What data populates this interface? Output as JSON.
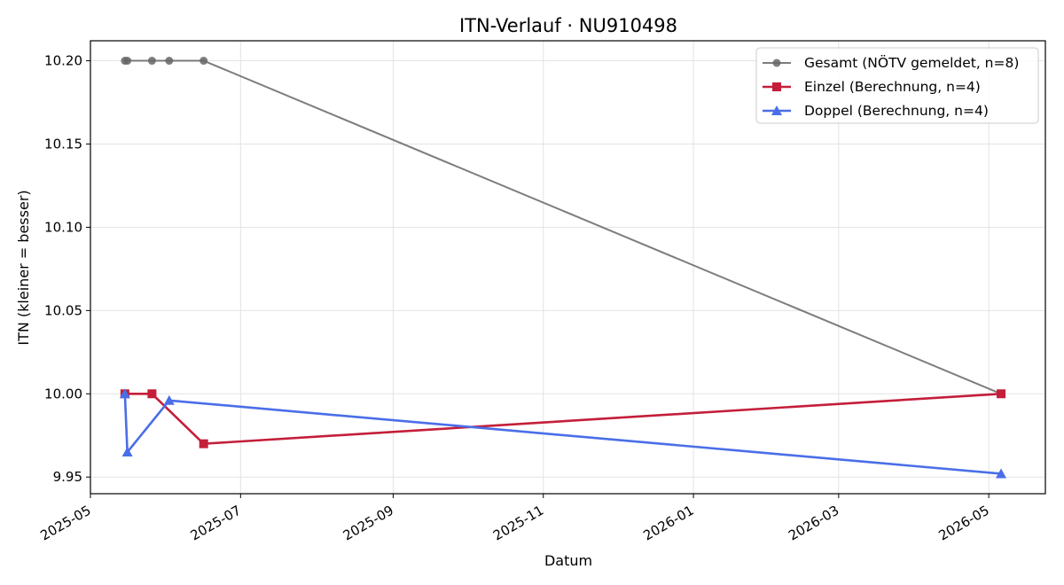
{
  "chart_data": {
    "type": "line",
    "title": "ITN-Verlauf · NU910498",
    "xlabel": "Datum",
    "ylabel": "ITN  (kleiner = besser)",
    "x_axis_type": "date",
    "xlim": [
      "2025-05-01",
      "2026-05-24"
    ],
    "ylim": [
      9.94,
      10.212
    ],
    "x_ticks": [
      "2025-05-01",
      "2025-07-01",
      "2025-09-01",
      "2025-11-01",
      "2026-01-01",
      "2026-03-01",
      "2026-05-01"
    ],
    "x_tick_labels": [
      "2025-05",
      "2025-07",
      "2025-09",
      "2025-11",
      "2026-01",
      "2026-03",
      "2026-05"
    ],
    "y_ticks": [
      9.95,
      10.0,
      10.05,
      10.1,
      10.15,
      10.2
    ],
    "y_tick_labels": [
      "9.95",
      "10.00",
      "10.05",
      "10.10",
      "10.15",
      "10.20"
    ],
    "grid": true,
    "legend_position": "top-right",
    "series": [
      {
        "name": "Gesamt (NÖTV gemeldet, n=8)",
        "color": "#666666",
        "marker": "circle",
        "points": [
          {
            "x": "2025-05-15",
            "y": 10.2
          },
          {
            "x": "2025-05-16",
            "y": 10.2
          },
          {
            "x": "2025-05-26",
            "y": 10.2
          },
          {
            "x": "2025-06-02",
            "y": 10.2
          },
          {
            "x": "2025-06-16",
            "y": 10.2
          },
          {
            "x": "2026-05-06",
            "y": 10.0
          }
        ]
      },
      {
        "name": "Einzel (Berechnung, n=4)",
        "color": "#c41e3a",
        "marker": "square",
        "points": [
          {
            "x": "2025-05-15",
            "y": 10.0
          },
          {
            "x": "2025-05-26",
            "y": 10.0
          },
          {
            "x": "2025-06-16",
            "y": 9.97
          },
          {
            "x": "2026-05-06",
            "y": 10.0
          }
        ]
      },
      {
        "name": "Doppel (Berechnung, n=4)",
        "color": "#4a6ee8",
        "marker": "triangle",
        "points": [
          {
            "x": "2025-05-15",
            "y": 10.0
          },
          {
            "x": "2025-05-16",
            "y": 9.965
          },
          {
            "x": "2025-06-02",
            "y": 9.996
          },
          {
            "x": "2026-05-06",
            "y": 9.952
          }
        ]
      }
    ]
  }
}
